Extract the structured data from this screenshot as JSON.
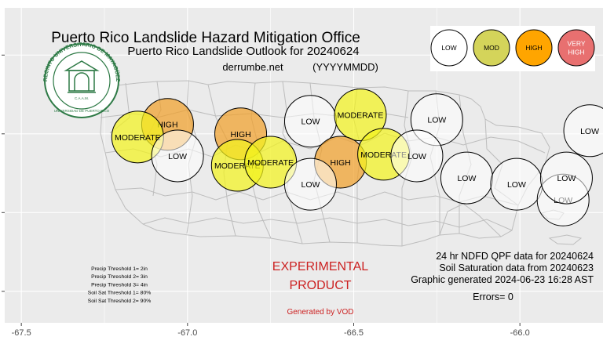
{
  "header": {
    "title": "Puerto Rico Landslide Hazard Mitigation Office",
    "subtitle": "Puerto Rico Landslide Outlook for 20240624",
    "site": "derrumbe.net",
    "date_format": "(YYYYMMDD)"
  },
  "seal": {
    "ring_text": "RECINTO UNIVERSITARIO DE MAYAGÜEZ",
    "bottom_text": "UNIVERSIDAD DE PUERTO RICO",
    "initials": "C.A.A.M."
  },
  "legend": [
    {
      "label": "LOW",
      "color": "#ffffff",
      "text_color": "#000000"
    },
    {
      "label": "MOD",
      "color": "#d4d45a",
      "text_color": "#000000"
    },
    {
      "label": "HIGH",
      "color": "#ffa500",
      "text_color": "#000000"
    },
    {
      "label": "VERY HIGH",
      "color": "#e87070",
      "text_color": "#ffffff"
    }
  ],
  "colors": {
    "low": "#ffffff",
    "moderate": "#f2f21e",
    "high": "#f0a02a",
    "panel": "#ebebeb",
    "grid": "#ffffff",
    "experimental": "#cc2222"
  },
  "map": {
    "x_axis": {
      "range": [
        -67.55,
        -65.75
      ],
      "ticks": [
        "-67.5",
        "-67.0",
        "-66.5",
        "-66.0"
      ]
    },
    "y_axis": {
      "range": [
        17.7,
        18.7
      ]
    },
    "zones": [
      {
        "label": "HIGH",
        "level": "high",
        "lon": -67.06,
        "lat": 18.33
      },
      {
        "label": "HIGH",
        "level": "high",
        "lon": -66.84,
        "lat": 18.3
      },
      {
        "label": "MODERATE",
        "level": "moderate",
        "lon": -67.15,
        "lat": 18.29
      },
      {
        "label": "LOW",
        "level": "low",
        "lon": -67.03,
        "lat": 18.23
      },
      {
        "label": "MODERATE",
        "level": "moderate",
        "lon": -66.85,
        "lat": 18.2
      },
      {
        "label": "MODERATE",
        "level": "moderate",
        "lon": -66.75,
        "lat": 18.21
      },
      {
        "label": "LOW",
        "level": "low",
        "lon": -66.63,
        "lat": 18.34
      },
      {
        "label": "MODERATE",
        "level": "moderate",
        "lon": -66.48,
        "lat": 18.36
      },
      {
        "label": "LOW",
        "level": "low",
        "lon": -66.25,
        "lat": 18.345
      },
      {
        "label": "HIGH",
        "level": "high",
        "lon": -66.54,
        "lat": 18.21
      },
      {
        "label": "LOW",
        "level": "low",
        "lon": -66.63,
        "lat": 18.14
      },
      {
        "label": "MODERATE",
        "level": "moderate",
        "lon": -66.41,
        "lat": 18.235
      },
      {
        "label": "LOW",
        "level": "low",
        "lon": -66.31,
        "lat": 18.23
      },
      {
        "label": "LOW",
        "level": "low",
        "lon": -66.16,
        "lat": 18.16
      },
      {
        "label": "LOW",
        "level": "low",
        "lon": -66.01,
        "lat": 18.14
      },
      {
        "label": "LOW",
        "level": "low",
        "lon": -65.87,
        "lat": 18.09
      },
      {
        "label": "LOW",
        "level": "low",
        "lon": -65.86,
        "lat": 18.16
      },
      {
        "label": "LOW",
        "level": "low",
        "lon": -65.79,
        "lat": 18.31
      }
    ]
  },
  "thresholds": [
    "Precip Threshold 1= 2in",
    "Precip Threshold 2= 3in",
    "Precip Threshold 3= 4in",
    "Soil Sat Threshold 1= 80%",
    "Soil Sat Threshold 2= 90%"
  ],
  "experimental": {
    "line1": "EXPERIMENTAL",
    "line2": "PRODUCT",
    "credit": "Generated by VOD"
  },
  "info": {
    "qpf": "24 hr NDFD QPF data for 20240624",
    "soil": "Soil Saturation data from 20240623",
    "generated": "Graphic generated 2024-06-23 16:28 AST",
    "errors": "Errors= 0"
  }
}
